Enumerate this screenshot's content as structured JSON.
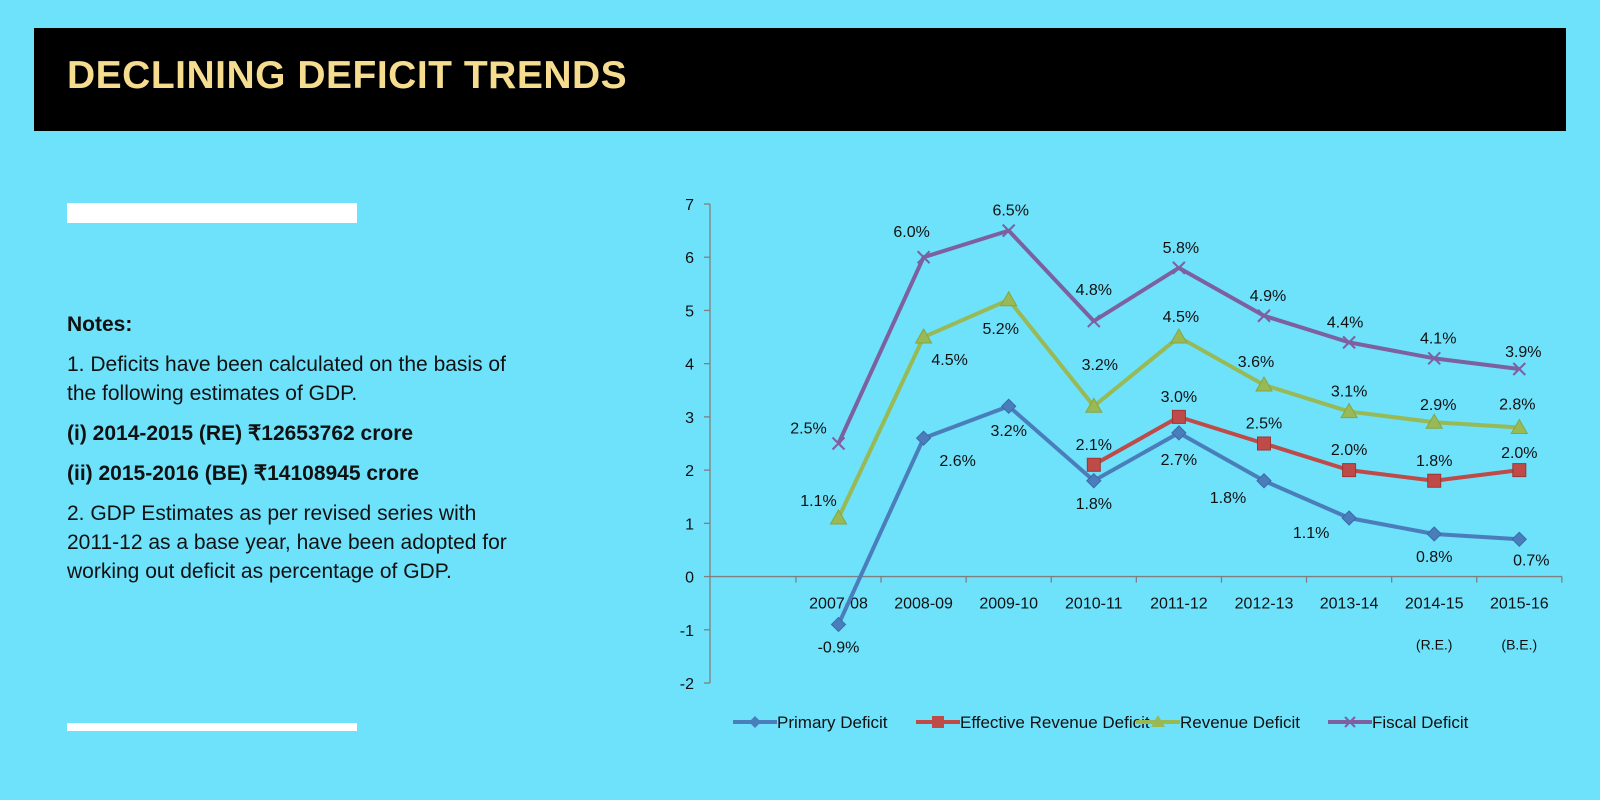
{
  "header": {
    "title": "DECLINING DEFICIT TRENDS"
  },
  "notes": {
    "heading": "Notes:",
    "line1": "1. Deficits have been calculated on the basis of the following estimates of GDP.",
    "line2": "(i) 2014-2015 (RE) ₹12653762 crore",
    "line3": "(ii) 2015-2016 (BE)  ₹14108945 crore",
    "line4": "2. GDP Estimates as per revised series with 2011-12 as a base year, have been adopted for working out deficit as percentage of GDP."
  },
  "colors": {
    "background": "#6ee1fb",
    "title_bar": "#000000",
    "title_text": "#f6dc8f",
    "axis": "#7f7f7f"
  },
  "chart_data": {
    "type": "line",
    "categories": [
      "2007-08",
      "2008-09",
      "2009-10",
      "2010-11",
      "2011-12",
      "2012-13",
      "2013-14",
      "2014-15",
      "2015-16"
    ],
    "category_sublabels": [
      "",
      "",
      "",
      "",
      "",
      "",
      "",
      "(R.E.)",
      "(B.E.)"
    ],
    "ylim": [
      -2,
      7
    ],
    "yticks": [
      -2,
      -1,
      0,
      1,
      2,
      3,
      4,
      5,
      6,
      7
    ],
    "legend_position": "bottom",
    "series": [
      {
        "name": "Primary Deficit",
        "color": "#4a7ebb",
        "marker": "diamond",
        "values": [
          -0.9,
          2.6,
          3.2,
          1.8,
          2.7,
          1.8,
          1.1,
          0.8,
          0.7
        ],
        "labels": [
          "-0.9%",
          "2.6%",
          "3.2%",
          "1.8%",
          "2.7%",
          "1.8%",
          "1.1%",
          "0.8%",
          "0.7%"
        ]
      },
      {
        "name": "Effective Revenue Deficit",
        "color": "#be4b48",
        "marker": "square",
        "values": [
          null,
          null,
          null,
          2.1,
          3.0,
          2.5,
          2.0,
          1.8,
          2.0
        ],
        "labels": [
          "",
          "",
          "",
          "2.1%",
          "3.0%",
          "2.5%",
          "2.0%",
          "1.8%",
          "2.0%"
        ]
      },
      {
        "name": "Revenue Deficit",
        "color": "#98b954",
        "marker": "triangle",
        "values": [
          1.1,
          4.5,
          5.2,
          3.2,
          4.5,
          3.6,
          3.1,
          2.9,
          2.8
        ],
        "labels": [
          "1.1%",
          "4.5%",
          "5.2%",
          "3.2%",
          "4.5%",
          "3.6%",
          "3.1%",
          "2.9%",
          "2.8%"
        ]
      },
      {
        "name": "Fiscal Deficit",
        "color": "#7d60a0",
        "marker": "x",
        "values": [
          2.5,
          6.0,
          6.5,
          4.8,
          5.8,
          4.9,
          4.4,
          4.1,
          3.9
        ],
        "labels": [
          "2.5%",
          "6.0%",
          "6.5%",
          "4.8%",
          "5.8%",
          "4.9%",
          "4.4%",
          "4.1%",
          "3.9%"
        ]
      }
    ]
  }
}
